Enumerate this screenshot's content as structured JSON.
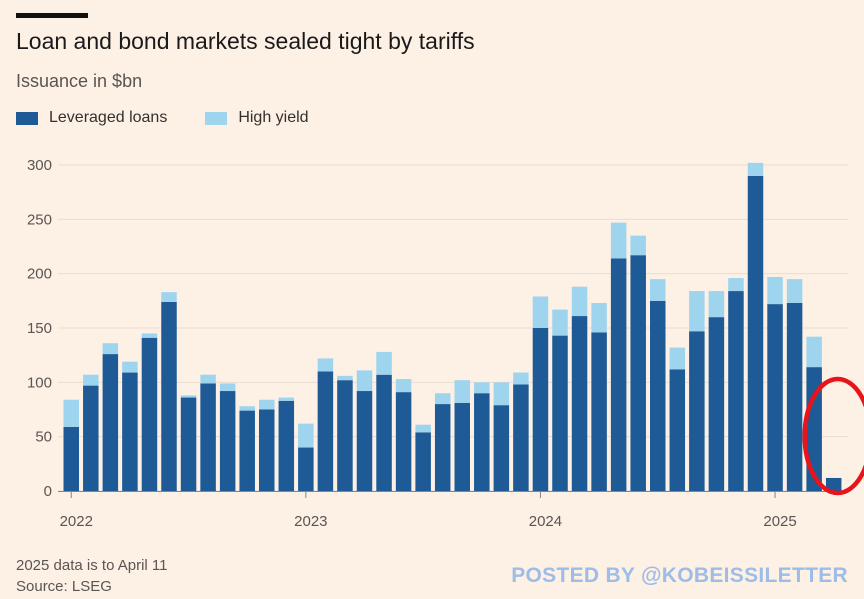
{
  "chart_data": {
    "type": "bar",
    "stacked": true,
    "title": "Loan and bond markets sealed tight by tariffs",
    "subtitle": "Issuance in $bn",
    "ylim": [
      0,
      300
    ],
    "yticks": [
      0,
      50,
      100,
      150,
      200,
      250,
      300
    ],
    "x_labels": [
      {
        "label": "2022",
        "index": 0
      },
      {
        "label": "2023",
        "index": 12
      },
      {
        "label": "2024",
        "index": 24
      },
      {
        "label": "2025",
        "index": 36
      }
    ],
    "series": [
      {
        "name": "Leveraged loans",
        "color": "#1d5a96",
        "values": [
          59,
          97,
          126,
          109,
          141,
          174,
          86,
          99,
          92,
          74,
          75,
          83,
          40,
          110,
          102,
          92,
          107,
          91,
          54,
          80,
          81,
          90,
          79,
          98,
          150,
          143,
          161,
          146,
          214,
          217,
          175,
          112,
          147,
          160,
          184,
          290,
          172,
          173,
          114,
          12
        ]
      },
      {
        "name": "High yield",
        "color": "#9fd4ef",
        "values": [
          25,
          10,
          10,
          10,
          4,
          9,
          2,
          8,
          7,
          4,
          9,
          3,
          22,
          12,
          4,
          19,
          21,
          12,
          7,
          10,
          21,
          10,
          21,
          11,
          29,
          24,
          27,
          27,
          33,
          18,
          20,
          20,
          37,
          24,
          12,
          12,
          25,
          22,
          28,
          0
        ]
      }
    ]
  },
  "legend": {
    "loans_label": "Leveraged loans",
    "hy_label": "High yield"
  },
  "footnote": "2025 data is to April 11",
  "source": "Source: LSEG",
  "watermark": "POSTED BY @KOBEISSILETTER",
  "annotation": {
    "type": "red-circle-highlight",
    "target_index": 39,
    "color": "#e8141c"
  }
}
